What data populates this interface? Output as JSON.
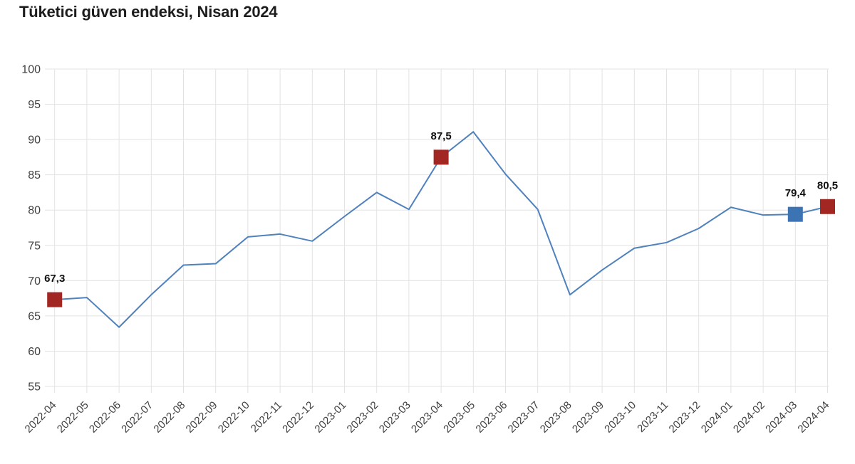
{
  "title": "Tüketici güven endeksi, Nisan 2024",
  "colors": {
    "background": "#ffffff",
    "title_text": "#1d1d1d",
    "axis_text": "#3f3f3f",
    "grid": "#e3e3e3",
    "line": "#4f81bd",
    "highlight_red": "#a22723",
    "highlight_blue": "#3c73b2",
    "point_label_text": "#0f0f0f"
  },
  "chart_data": {
    "type": "line",
    "title": "Tüketici güven endeksi, Nisan 2024",
    "x": [
      "2022-04",
      "2022-05",
      "2022-06",
      "2022-07",
      "2022-08",
      "2022-09",
      "2022-10",
      "2022-11",
      "2022-12",
      "2023-01",
      "2023-02",
      "2023-03",
      "2023-04",
      "2023-05",
      "2023-06",
      "2023-07",
      "2023-08",
      "2023-09",
      "2023-10",
      "2023-11",
      "2023-12",
      "2024-01",
      "2024-02",
      "2024-03",
      "2024-04"
    ],
    "series": [
      {
        "name": "Tüketici güven endeksi",
        "color": "#4f81bd",
        "values": [
          67.3,
          67.6,
          63.4,
          68.0,
          72.2,
          72.4,
          76.2,
          76.6,
          75.6,
          79.1,
          82.5,
          80.1,
          87.5,
          91.1,
          85.1,
          80.1,
          68.0,
          71.5,
          74.6,
          75.4,
          77.4,
          80.4,
          79.3,
          79.4,
          80.5
        ]
      }
    ],
    "ylim": [
      55,
      100
    ],
    "ytick_step": 5,
    "yticks": [
      100,
      95,
      90,
      85,
      80,
      75,
      70,
      65,
      60,
      55
    ],
    "xlabel": "",
    "ylabel": "",
    "grid": true,
    "legend": "none",
    "decimal_separator": ",",
    "x_label_rotation_deg": -45,
    "annotations": [
      {
        "month": "2022-04",
        "value": 67.3,
        "label": "67,3",
        "marker": "square",
        "color": "#a22723"
      },
      {
        "month": "2023-04",
        "value": 87.5,
        "label": "87,5",
        "marker": "square",
        "color": "#a22723"
      },
      {
        "month": "2024-03",
        "value": 79.4,
        "label": "79,4",
        "marker": "square",
        "color": "#3c73b2"
      },
      {
        "month": "2024-04",
        "value": 80.5,
        "label": "80,5",
        "marker": "square",
        "color": "#a22723"
      }
    ]
  }
}
